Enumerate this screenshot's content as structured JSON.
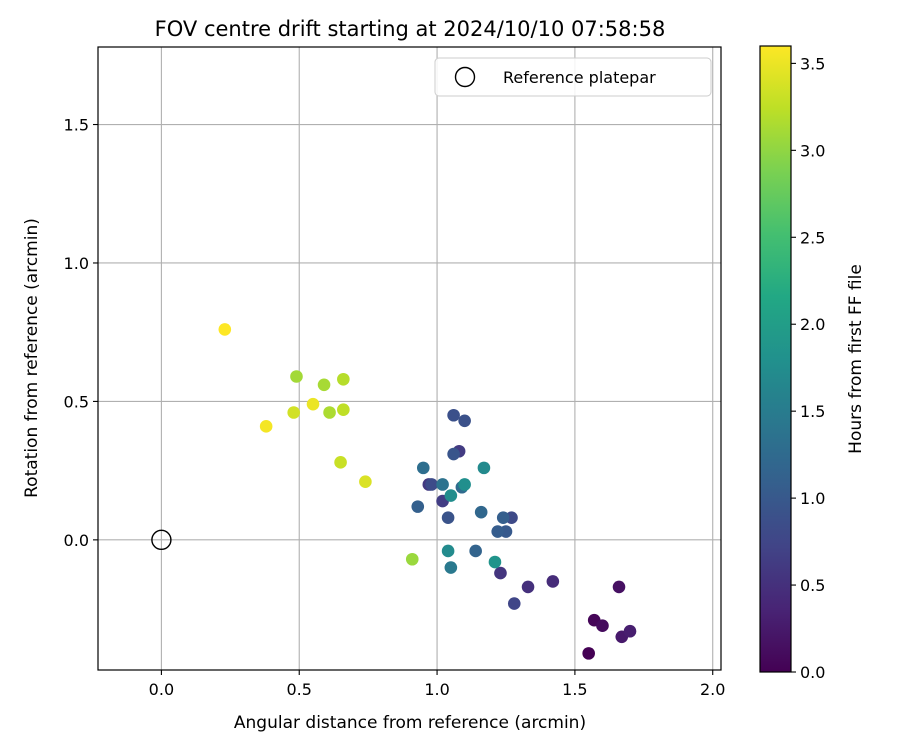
{
  "chart_data": {
    "type": "scatter",
    "title": "FOV centre drift starting at 2024/10/10 07:58:58",
    "xlabel": "Angular distance from reference (arcmin)",
    "ylabel": "Rotation from reference (arcmin)",
    "xlim": [
      -0.23,
      2.03
    ],
    "ylim": [
      -0.47,
      1.78
    ],
    "xticks": [
      {
        "value": 0.0,
        "label": "0.0"
      },
      {
        "value": 0.5,
        "label": "0.5"
      },
      {
        "value": 1.0,
        "label": "1.0"
      },
      {
        "value": 1.5,
        "label": "1.5"
      },
      {
        "value": 2.0,
        "label": "2.0"
      }
    ],
    "yticks": [
      {
        "value": 0.0,
        "label": "0.0"
      },
      {
        "value": 0.5,
        "label": "0.5"
      },
      {
        "value": 1.0,
        "label": "1.0"
      },
      {
        "value": 1.5,
        "label": "1.5"
      }
    ],
    "grid": true,
    "legend": {
      "placement": "top-right",
      "entries": [
        {
          "label": "Reference platepar",
          "marker": "hollow-circle",
          "color": "#000000"
        }
      ]
    },
    "reference_point": {
      "x": 0.0,
      "y": 0.0
    },
    "colorbar": {
      "label": "Hours from first FF file",
      "colormap": "viridis",
      "range": [
        0.0,
        3.6
      ],
      "ticks": [
        {
          "value": 0.0,
          "label": "0.0"
        },
        {
          "value": 0.5,
          "label": "0.5"
        },
        {
          "value": 1.0,
          "label": "1.0"
        },
        {
          "value": 1.5,
          "label": "1.5"
        },
        {
          "value": 2.0,
          "label": "2.0"
        },
        {
          "value": 2.5,
          "label": "2.5"
        },
        {
          "value": 3.0,
          "label": "3.0"
        },
        {
          "value": 3.5,
          "label": "3.5"
        }
      ]
    },
    "points": [
      {
        "x": 1.55,
        "y": -0.41,
        "hours": 0.0
      },
      {
        "x": 1.57,
        "y": -0.29,
        "hours": 0.05
      },
      {
        "x": 1.6,
        "y": -0.31,
        "hours": 0.1
      },
      {
        "x": 1.66,
        "y": -0.17,
        "hours": 0.15
      },
      {
        "x": 1.67,
        "y": -0.35,
        "hours": 0.25
      },
      {
        "x": 1.7,
        "y": -0.33,
        "hours": 0.3
      },
      {
        "x": 1.42,
        "y": -0.15,
        "hours": 0.45
      },
      {
        "x": 1.33,
        "y": -0.17,
        "hours": 0.5
      },
      {
        "x": 1.23,
        "y": -0.12,
        "hours": 0.55
      },
      {
        "x": 0.97,
        "y": 0.2,
        "hours": 0.6
      },
      {
        "x": 1.08,
        "y": 0.32,
        "hours": 0.62
      },
      {
        "x": 1.02,
        "y": 0.14,
        "hours": 0.65
      },
      {
        "x": 1.28,
        "y": -0.23,
        "hours": 0.75
      },
      {
        "x": 1.27,
        "y": 0.08,
        "hours": 0.8
      },
      {
        "x": 0.98,
        "y": 0.2,
        "hours": 0.82
      },
      {
        "x": 1.06,
        "y": 0.45,
        "hours": 0.88
      },
      {
        "x": 1.1,
        "y": 0.43,
        "hours": 0.9
      },
      {
        "x": 1.04,
        "y": 0.08,
        "hours": 0.92
      },
      {
        "x": 1.06,
        "y": 0.31,
        "hours": 0.95
      },
      {
        "x": 1.25,
        "y": 0.03,
        "hours": 1.0
      },
      {
        "x": 1.22,
        "y": 0.03,
        "hours": 1.05
      },
      {
        "x": 1.24,
        "y": 0.08,
        "hours": 1.08
      },
      {
        "x": 0.93,
        "y": 0.12,
        "hours": 1.1
      },
      {
        "x": 1.14,
        "y": -0.04,
        "hours": 1.15
      },
      {
        "x": 1.16,
        "y": 0.1,
        "hours": 1.2
      },
      {
        "x": 1.09,
        "y": 0.19,
        "hours": 1.25
      },
      {
        "x": 0.95,
        "y": 0.26,
        "hours": 1.3
      },
      {
        "x": 1.02,
        "y": 0.2,
        "hours": 1.35
      },
      {
        "x": 1.05,
        "y": -0.1,
        "hours": 1.45
      },
      {
        "x": 1.17,
        "y": 0.26,
        "hours": 1.7
      },
      {
        "x": 1.04,
        "y": -0.04,
        "hours": 1.72
      },
      {
        "x": 1.05,
        "y": 0.16,
        "hours": 1.75
      },
      {
        "x": 1.1,
        "y": 0.2,
        "hours": 1.78
      },
      {
        "x": 1.21,
        "y": -0.08,
        "hours": 1.85
      },
      {
        "x": 0.91,
        "y": -0.07,
        "hours": 3.05
      },
      {
        "x": 0.49,
        "y": 0.59,
        "hours": 3.1
      },
      {
        "x": 0.59,
        "y": 0.56,
        "hours": 3.12
      },
      {
        "x": 0.61,
        "y": 0.46,
        "hours": 3.15
      },
      {
        "x": 0.66,
        "y": 0.58,
        "hours": 3.2
      },
      {
        "x": 0.66,
        "y": 0.47,
        "hours": 3.25
      },
      {
        "x": 0.65,
        "y": 0.28,
        "hours": 3.3
      },
      {
        "x": 0.48,
        "y": 0.46,
        "hours": 3.35
      },
      {
        "x": 0.74,
        "y": 0.21,
        "hours": 3.4
      },
      {
        "x": 0.55,
        "y": 0.49,
        "hours": 3.5
      },
      {
        "x": 0.38,
        "y": 0.41,
        "hours": 3.55
      },
      {
        "x": 0.23,
        "y": 0.76,
        "hours": 3.6
      }
    ]
  }
}
